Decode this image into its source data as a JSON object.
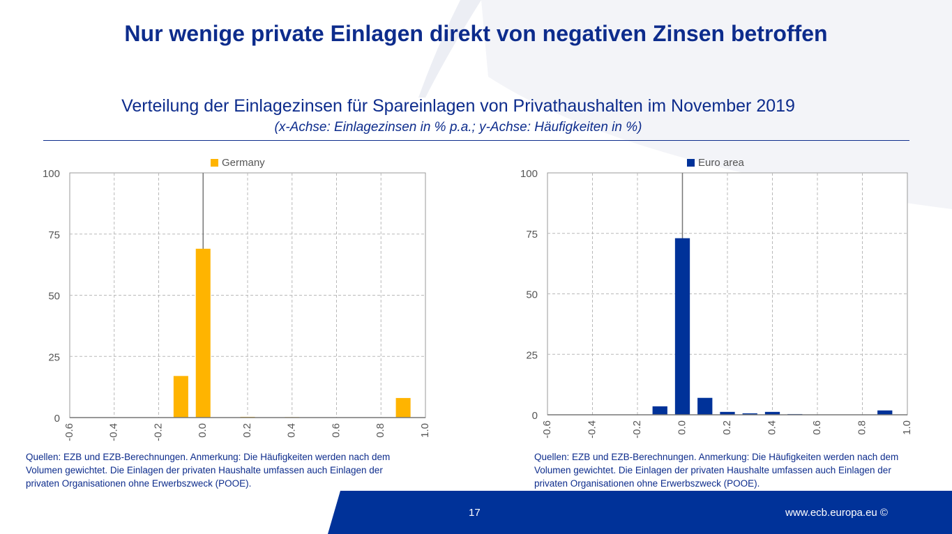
{
  "slide": {
    "title": "Nur wenige private Einlagen direkt von negativen Zinsen betroffen",
    "subtitle": "Verteilung der Einlagezinsen für Spareinlagen von Privathaushalten im November 2019",
    "axis_note": "(x-Achse: Einlagezinsen in % p.a.; y-Achse: Häufigkeiten in %)",
    "page_number": "17",
    "website": "www.ecb.europa.eu ©"
  },
  "notes": {
    "left": [
      "Quellen: EZB und EZB-Berechnungen. Anmerkung: Die Häufigkeiten werden nach dem",
      "Volumen gewichtet. Die Einlagen der privaten Haushalte umfassen auch Einlagen der",
      "privaten Organisationen ohne Erwerbszweck (POOE)."
    ],
    "right": [
      "Quellen: EZB und EZB-Berechnungen. Anmerkung: Die Häufigkeiten werden nach dem",
      "Volumen gewichtet. Die Einlagen der privaten Haushalte umfassen auch Einlagen der",
      "privaten Organisationen ohne Erwerbszweck (POOE)."
    ]
  },
  "colors": {
    "title": "#0d2c8c",
    "germany": "#ffb400",
    "euro_area": "#003299",
    "grid": "#b8b8b8",
    "footer": "#003299"
  },
  "chart_data": [
    {
      "type": "bar",
      "series_name": "Germany",
      "color": "#ffb400",
      "xlim": [
        -0.6,
        1.0
      ],
      "ylim": [
        0,
        100
      ],
      "xticks": [
        -0.6,
        -0.4,
        -0.2,
        0.0,
        0.2,
        0.4,
        0.6,
        0.8,
        1.0
      ],
      "xtick_labels": [
        "-0.6",
        "-0.4",
        "-0.2",
        "0.0",
        "0.2",
        "0.4",
        "0.6",
        "0.8",
        "1.0"
      ],
      "yticks": [
        0,
        25,
        50,
        75,
        100
      ],
      "ytick_labels": [
        "0",
        "25",
        "50",
        "75",
        "100"
      ],
      "bin_width": 0.1,
      "x": [
        -0.1,
        0.0,
        0.1,
        0.2,
        0.3,
        0.4,
        0.5,
        0.6,
        0.7,
        0.8,
        0.9
      ],
      "values": [
        17,
        69,
        0,
        0.3,
        0,
        0.2,
        0,
        0,
        0,
        0,
        8
      ],
      "legend": "top-center",
      "grid": true
    },
    {
      "type": "bar",
      "series_name": "Euro area",
      "color": "#003299",
      "xlim": [
        -0.6,
        1.0
      ],
      "ylim": [
        0,
        100
      ],
      "xticks": [
        -0.6,
        -0.4,
        -0.2,
        0.0,
        0.2,
        0.4,
        0.6,
        0.8,
        1.0
      ],
      "xtick_labels": [
        "-0.6",
        "-0.4",
        "-0.2",
        "0.0",
        "0.2",
        "0.4",
        "0.6",
        "0.8",
        "1.0"
      ],
      "yticks": [
        0,
        25,
        50,
        75,
        100
      ],
      "ytick_labels": [
        "0",
        "25",
        "50",
        "75",
        "100"
      ],
      "bin_width": 0.1,
      "x": [
        -0.1,
        0.0,
        0.1,
        0.2,
        0.3,
        0.4,
        0.5,
        0.6,
        0.7,
        0.8,
        0.9
      ],
      "values": [
        3.5,
        73,
        7,
        1.2,
        0.6,
        1.2,
        0.3,
        0,
        0,
        0,
        1.8
      ],
      "legend": "top-center",
      "grid": true
    }
  ]
}
